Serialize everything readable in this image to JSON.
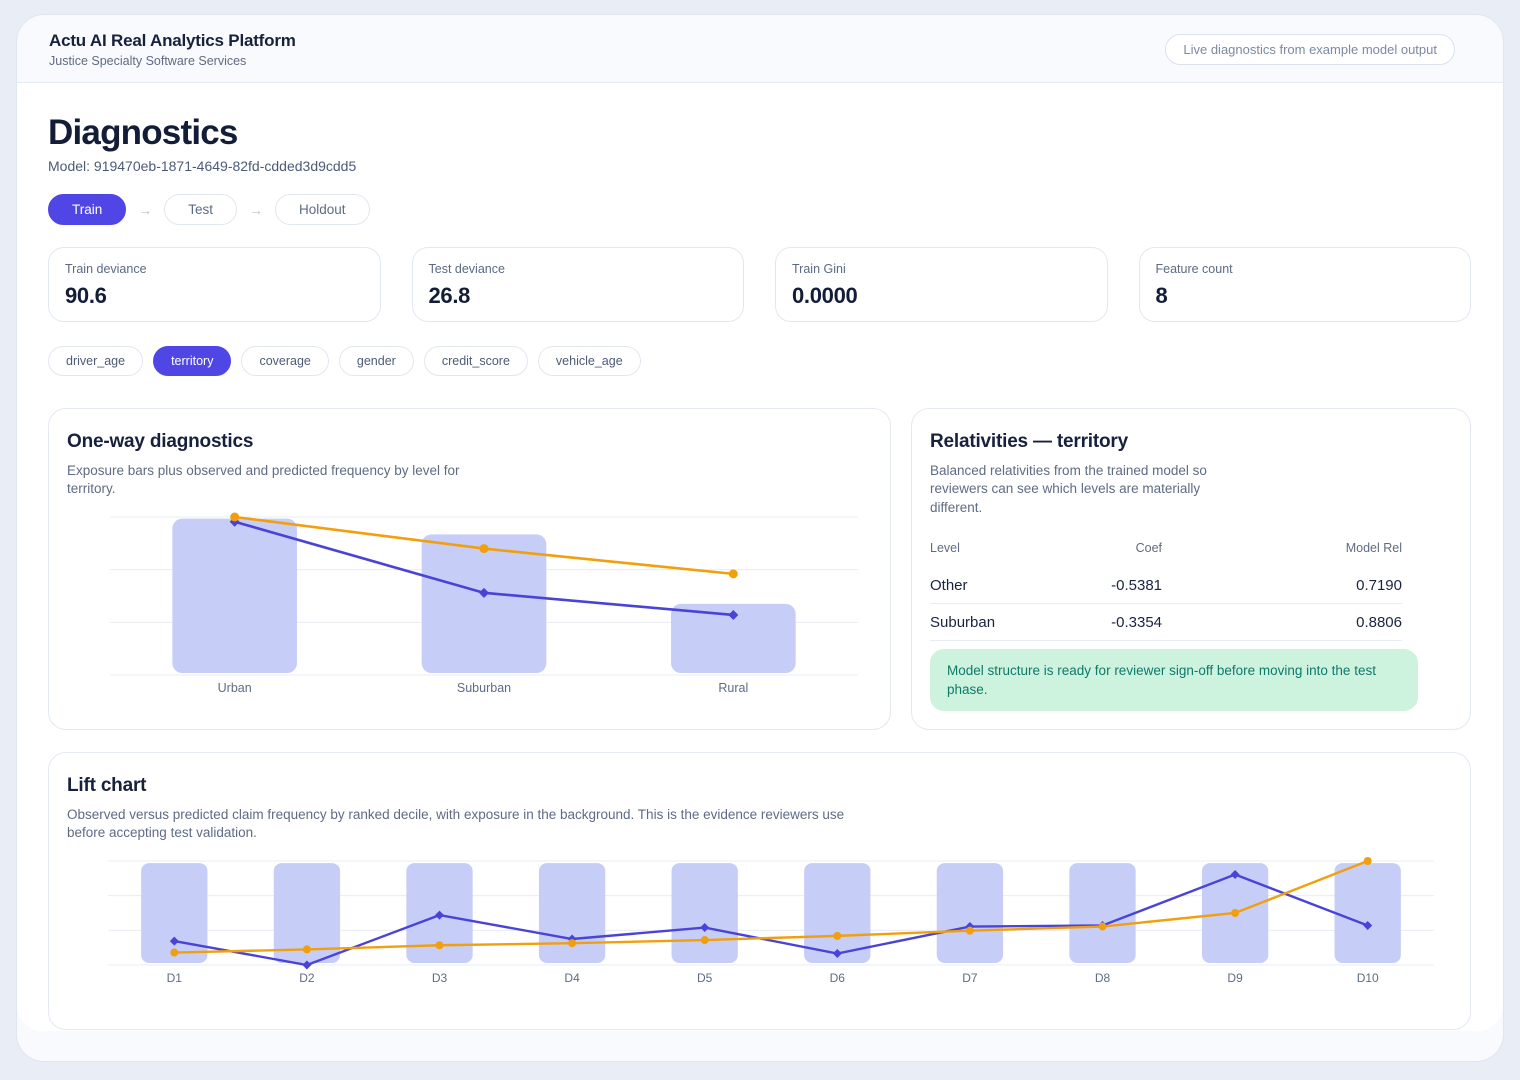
{
  "header": {
    "title": "Actu AI Real Analytics Platform",
    "subtitle": "Justice Specialty Software Services",
    "badge": "Live diagnostics from example model output"
  },
  "page": {
    "title": "Diagnostics",
    "model_line": "Model: 919470eb-1871-4649-82fd-cdded3d9cdd5"
  },
  "ui": {
    "arrow": "→"
  },
  "tabs": [
    {
      "label": "Train",
      "active": true
    },
    {
      "label": "Test",
      "active": false
    },
    {
      "label": "Holdout",
      "active": false
    }
  ],
  "metrics": [
    {
      "label": "Train deviance",
      "value": "90.6"
    },
    {
      "label": "Test deviance",
      "value": "26.8"
    },
    {
      "label": "Train Gini",
      "value": "0.0000"
    },
    {
      "label": "Feature count",
      "value": "8"
    }
  ],
  "features": [
    {
      "label": "driver_age",
      "active": false
    },
    {
      "label": "territory",
      "active": true
    },
    {
      "label": "coverage",
      "active": false
    },
    {
      "label": "gender",
      "active": false
    },
    {
      "label": "credit_score",
      "active": false
    },
    {
      "label": "vehicle_age",
      "active": false
    }
  ],
  "one_way": {
    "title": "One-way diagnostics",
    "description": "Exposure bars plus observed and predicted frequency by level for territory."
  },
  "relativities": {
    "title": "Relativities — territory",
    "description": "Balanced relativities from the trained model so reviewers can see which levels are materially different.",
    "columns": [
      "Level",
      "Coef",
      "Model Rel"
    ],
    "rows": [
      [
        "Other",
        "-0.5381",
        "0.7190"
      ],
      [
        "Suburban",
        "-0.3354",
        "0.8806"
      ]
    ],
    "notice": "Model structure is ready for reviewer sign-off before moving into the test phase."
  },
  "lift": {
    "title": "Lift chart",
    "description": "Observed versus predicted claim frequency by ranked decile, with exposure in the background. This is the evidence reviewers use before accepting test validation."
  },
  "colors": {
    "accent": "#4f46e5",
    "bar_fill": "#c6cdf7",
    "observed_line": "#4a43d6",
    "predicted_line": "#f29f0e",
    "gridline": "#e9ecf3",
    "axis_label": "#5f6b84",
    "notice_bg": "#cdf2dd",
    "notice_text": "#0e7a6a"
  },
  "chart_data": [
    {
      "id": "one_way",
      "type": "bar",
      "title": "One-way diagnostics",
      "categories": [
        "Urban",
        "Suburban",
        "Rural"
      ],
      "bars": {
        "name": "Exposure",
        "values": [
          0.99,
          0.89,
          0.45
        ]
      },
      "series": [
        {
          "name": "Observed frequency",
          "color_key": "observed_line",
          "values": [
            0.97,
            0.52,
            0.38
          ]
        },
        {
          "name": "Predicted frequency",
          "color_key": "predicted_line",
          "values": [
            1.0,
            0.8,
            0.64
          ]
        }
      ],
      "ylim": [
        0,
        1
      ],
      "grid": true,
      "legend_position": "none",
      "note": "values are fractions of plot height; no y-axis tick labels are shown"
    },
    {
      "id": "lift",
      "type": "bar",
      "title": "Lift chart",
      "categories": [
        "D1",
        "D2",
        "D3",
        "D4",
        "D5",
        "D6",
        "D7",
        "D8",
        "D9",
        "D10"
      ],
      "bars": {
        "name": "Exposure",
        "values": [
          0.98,
          0.98,
          0.98,
          0.98,
          0.98,
          0.98,
          0.98,
          0.98,
          0.98,
          0.98
        ]
      },
      "series": [
        {
          "name": "Observed frequency",
          "color_key": "observed_line",
          "values": [
            0.23,
            0.0,
            0.48,
            0.25,
            0.36,
            0.11,
            0.37,
            0.38,
            0.87,
            0.38
          ]
        },
        {
          "name": "Predicted frequency",
          "color_key": "predicted_line",
          "values": [
            0.12,
            0.15,
            0.19,
            0.21,
            0.24,
            0.28,
            0.33,
            0.37,
            0.5,
            1.0
          ]
        }
      ],
      "ylim": [
        0,
        1
      ],
      "grid": true,
      "legend_position": "none",
      "note": "values are fractions of plot height; no y-axis tick labels are shown"
    }
  ]
}
